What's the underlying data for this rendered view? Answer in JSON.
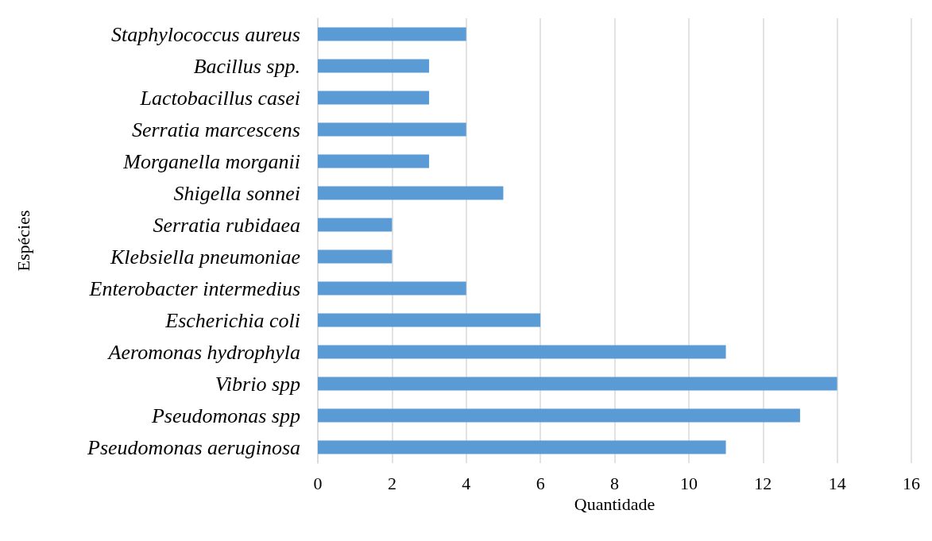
{
  "chart_data": {
    "type": "bar",
    "orientation": "horizontal",
    "xlabel": "Quantidade",
    "ylabel": "Espécies",
    "categories": [
      "Staphylococcus aureus",
      "Bacillus spp.",
      "Lactobacillus casei",
      "Serratia marcescens",
      "Morganella morganii",
      "Shigella sonnei",
      "Serratia rubidaea",
      "Klebsiella pneumoniae",
      "Enterobacter intermedius",
      "Escherichia coli",
      "Aeromonas hydrophyla",
      "Vibrio spp",
      "Pseudomonas spp",
      "Pseudomonas aeruginosa"
    ],
    "values": [
      4,
      3,
      3,
      4,
      3,
      5,
      2,
      2,
      4,
      6,
      11,
      14,
      13,
      11
    ],
    "color": "#5b9bd5",
    "xlim": [
      0,
      16
    ],
    "xticks": [
      0,
      2,
      4,
      6,
      8,
      10,
      12,
      14,
      16
    ],
    "grid": "x"
  }
}
